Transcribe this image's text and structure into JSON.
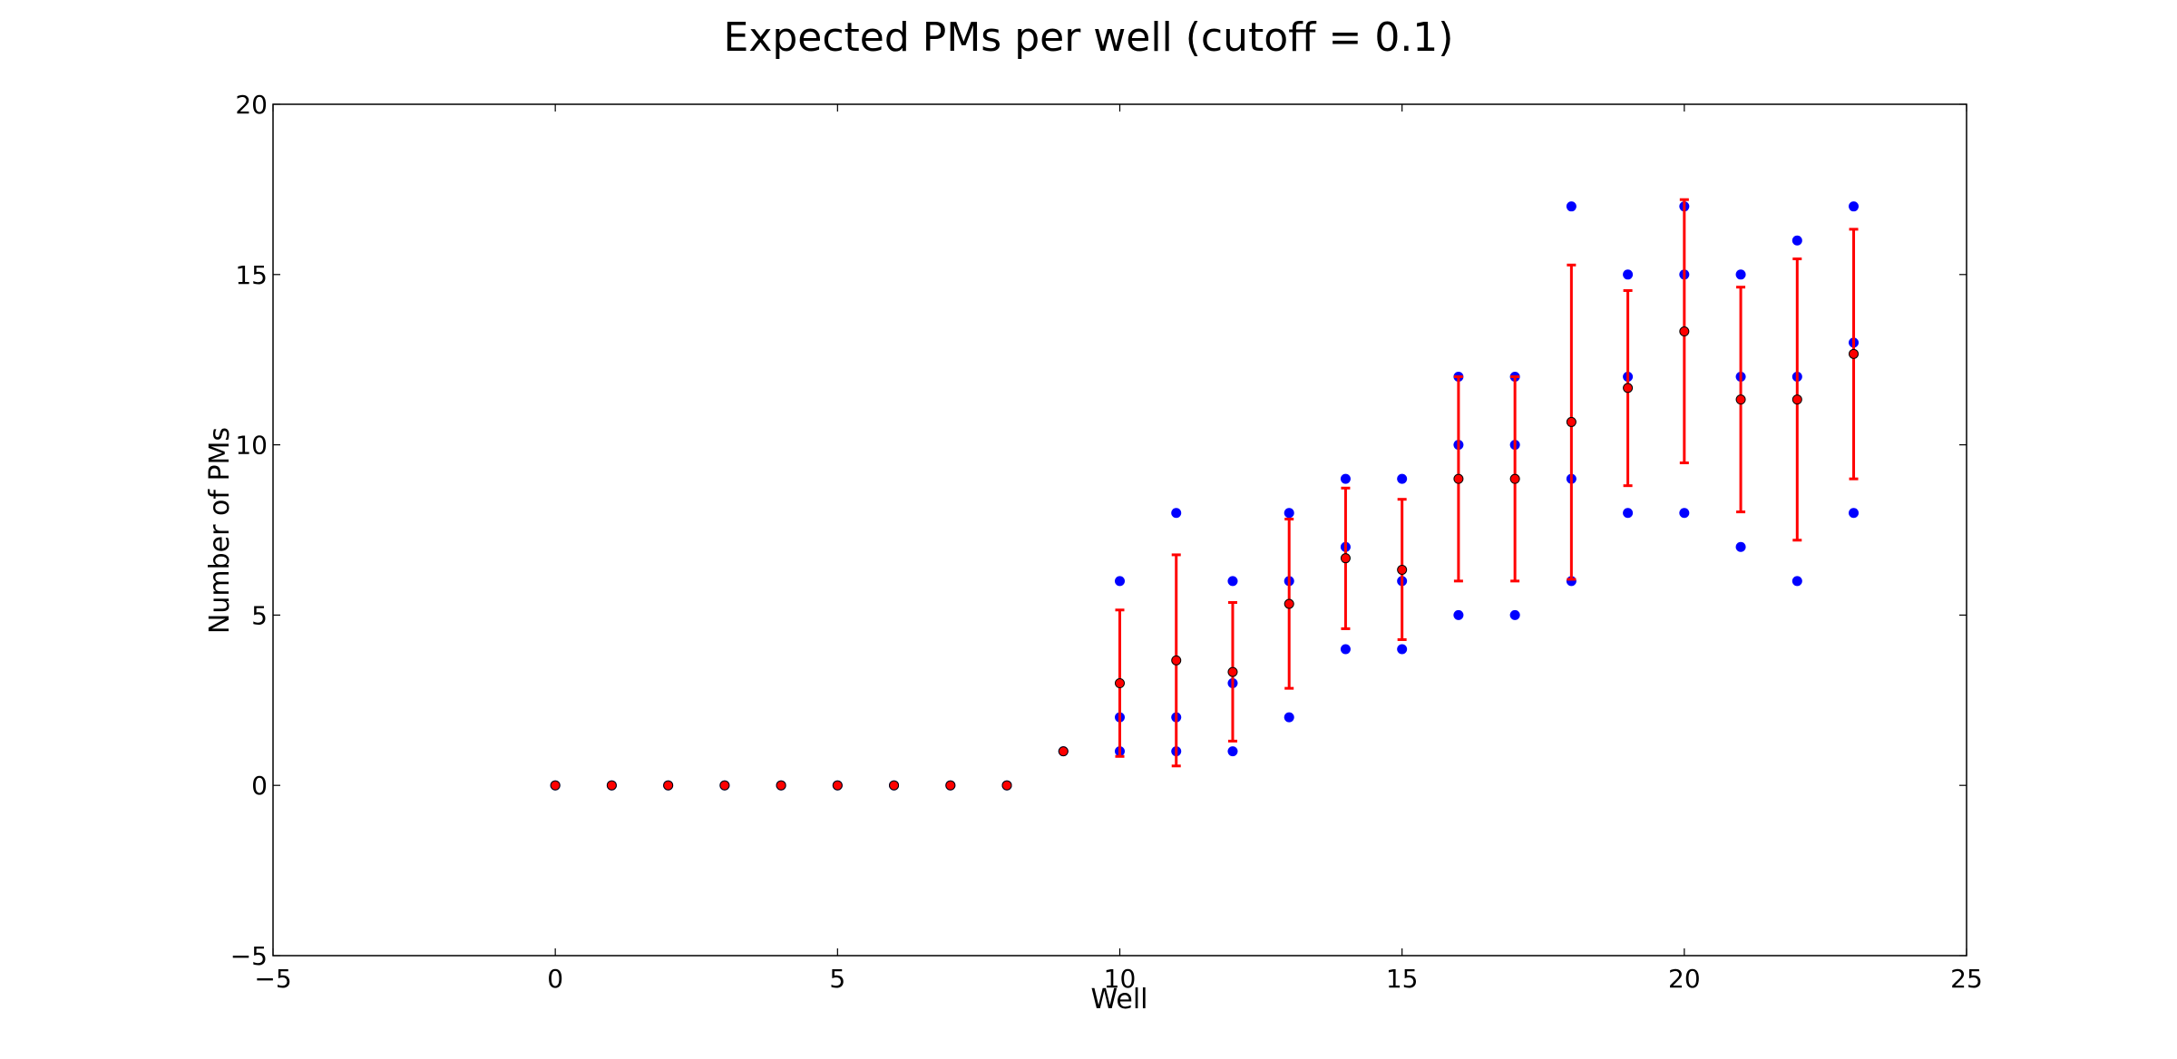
{
  "chart_data": {
    "type": "scatter",
    "title": "Expected PMs per well (cutoff = 0.1)",
    "xlabel": "Well",
    "ylabel": "Number of PMs",
    "xlim": [
      -5,
      25
    ],
    "ylim": [
      -5,
      20
    ],
    "xticks": [
      -5,
      0,
      5,
      10,
      15,
      20,
      25
    ],
    "yticks": [
      -5,
      0,
      5,
      10,
      15,
      20
    ],
    "xtick_labels": [
      "−5",
      "0",
      "5",
      "10",
      "15",
      "20",
      "25"
    ],
    "ytick_labels": [
      "−5",
      "0",
      "5",
      "10",
      "15",
      "20"
    ],
    "grid": false,
    "colors": {
      "observed": "#0000ff",
      "expected": "#ff0000",
      "expected_edge": "#000000"
    },
    "observed_points": [
      [
        0,
        0
      ],
      [
        1,
        0
      ],
      [
        2,
        0
      ],
      [
        3,
        0
      ],
      [
        4,
        0
      ],
      [
        5,
        0
      ],
      [
        6,
        0
      ],
      [
        7,
        0
      ],
      [
        8,
        0
      ],
      [
        9,
        1
      ],
      [
        10,
        6
      ],
      [
        10,
        2
      ],
      [
        10,
        1
      ],
      [
        11,
        8
      ],
      [
        11,
        2
      ],
      [
        11,
        1
      ],
      [
        12,
        6
      ],
      [
        12,
        3
      ],
      [
        12,
        1
      ],
      [
        13,
        8
      ],
      [
        13,
        6
      ],
      [
        13,
        2
      ],
      [
        14,
        9
      ],
      [
        14,
        7
      ],
      [
        14,
        4
      ],
      [
        15,
        9
      ],
      [
        15,
        6
      ],
      [
        15,
        4
      ],
      [
        16,
        12
      ],
      [
        16,
        10
      ],
      [
        16,
        5
      ],
      [
        17,
        12
      ],
      [
        17,
        10
      ],
      [
        17,
        5
      ],
      [
        18,
        17
      ],
      [
        18,
        9
      ],
      [
        18,
        6
      ],
      [
        19,
        15
      ],
      [
        19,
        12
      ],
      [
        19,
        8
      ],
      [
        20,
        17
      ],
      [
        20,
        15
      ],
      [
        20,
        8
      ],
      [
        21,
        15
      ],
      [
        21,
        12
      ],
      [
        21,
        7
      ],
      [
        22,
        16
      ],
      [
        22,
        12
      ],
      [
        22,
        6
      ],
      [
        23,
        17
      ],
      [
        23,
        13
      ],
      [
        23,
        8
      ]
    ],
    "expected": [
      {
        "x": 0,
        "mean": 0,
        "lower": 0,
        "upper": 0
      },
      {
        "x": 1,
        "mean": 0,
        "lower": 0,
        "upper": 0
      },
      {
        "x": 2,
        "mean": 0,
        "lower": 0,
        "upper": 0
      },
      {
        "x": 3,
        "mean": 0,
        "lower": 0,
        "upper": 0
      },
      {
        "x": 4,
        "mean": 0,
        "lower": 0,
        "upper": 0
      },
      {
        "x": 5,
        "mean": 0,
        "lower": 0,
        "upper": 0
      },
      {
        "x": 6,
        "mean": 0,
        "lower": 0,
        "upper": 0
      },
      {
        "x": 7,
        "mean": 0,
        "lower": 0,
        "upper": 0
      },
      {
        "x": 8,
        "mean": 0,
        "lower": 0,
        "upper": 0
      },
      {
        "x": 9,
        "mean": 1,
        "lower": 1,
        "upper": 1
      },
      {
        "x": 10,
        "mean": 3.0,
        "lower": 0.85,
        "upper": 5.15
      },
      {
        "x": 11,
        "mean": 3.67,
        "lower": 0.57,
        "upper": 6.77
      },
      {
        "x": 12,
        "mean": 3.33,
        "lower": 1.3,
        "upper": 5.37
      },
      {
        "x": 13,
        "mean": 5.33,
        "lower": 2.85,
        "upper": 7.82
      },
      {
        "x": 14,
        "mean": 6.67,
        "lower": 4.6,
        "upper": 8.73
      },
      {
        "x": 15,
        "mean": 6.33,
        "lower": 4.28,
        "upper": 8.4
      },
      {
        "x": 16,
        "mean": 9.0,
        "lower": 6.0,
        "upper": 12.0
      },
      {
        "x": 17,
        "mean": 9.0,
        "lower": 6.0,
        "upper": 12.0
      },
      {
        "x": 18,
        "mean": 10.67,
        "lower": 6.05,
        "upper": 15.28
      },
      {
        "x": 19,
        "mean": 11.67,
        "lower": 8.8,
        "upper": 14.53
      },
      {
        "x": 20,
        "mean": 13.33,
        "lower": 9.47,
        "upper": 17.2
      },
      {
        "x": 21,
        "mean": 11.33,
        "lower": 8.03,
        "upper": 14.63
      },
      {
        "x": 22,
        "mean": 11.33,
        "lower": 7.2,
        "upper": 15.46
      },
      {
        "x": 23,
        "mean": 12.67,
        "lower": 9.0,
        "upper": 16.33
      }
    ]
  }
}
